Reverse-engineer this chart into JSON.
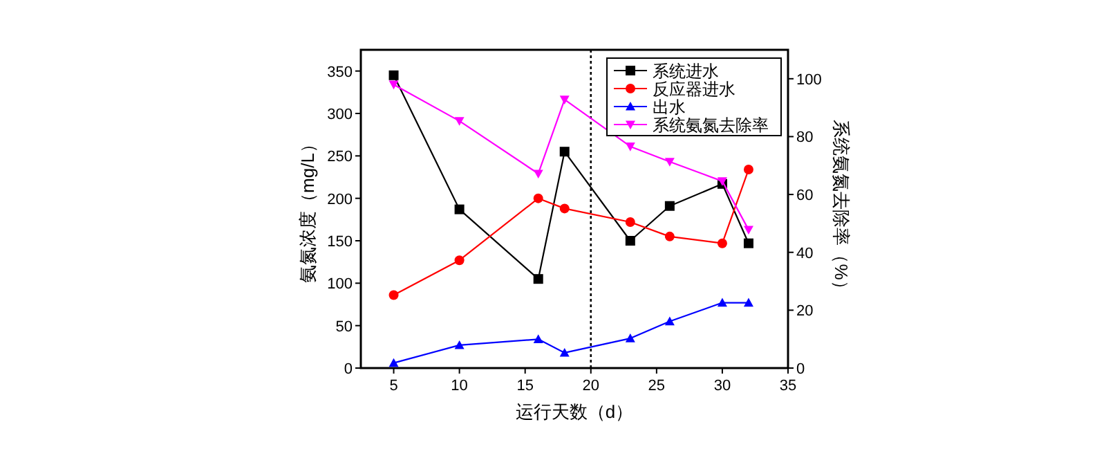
{
  "chart_data": {
    "type": "line",
    "xlabel": "运行天数（d）",
    "ylabel": "氨氮浓度（mg/L）",
    "y2label": "系统氨氮去除率（%）",
    "x": [
      5,
      10,
      16,
      18,
      23,
      26,
      30,
      32
    ],
    "xlim": [
      2.5,
      35
    ],
    "xticks": [
      5,
      10,
      15,
      20,
      25,
      30,
      35
    ],
    "ylim": [
      0,
      375
    ],
    "yticks": [
      0,
      50,
      100,
      150,
      200,
      250,
      300,
      350
    ],
    "y2lim": [
      0,
      110
    ],
    "y2ticks": [
      0,
      20,
      40,
      60,
      80,
      100
    ],
    "legend": "top right",
    "grid": false,
    "line_style": "solid",
    "ref_lines": [
      {
        "axis": "x",
        "value": 20,
        "color": "#000000",
        "line_style": "dotted"
      }
    ],
    "series": [
      {
        "name": "系统进水",
        "color": "#000000",
        "marker": "square",
        "values": [
          345,
          187,
          105,
          255,
          150,
          191,
          217,
          147
        ]
      },
      {
        "name": "反应器进水",
        "color": "#ff0000",
        "marker": "circle",
        "values": [
          86,
          127,
          200,
          188,
          172,
          155,
          147,
          234
        ]
      },
      {
        "name": "出水",
        "color": "#0000ff",
        "marker": "triangle",
        "values": [
          6,
          27,
          34,
          18,
          35,
          55,
          77,
          77
        ]
      },
      {
        "name": "系统氨氮去除率",
        "color": "#ff00ff",
        "marker": "triangle-down",
        "axis": "y2",
        "values": [
          98,
          85.4,
          67.2,
          92.8,
          76.6,
          71.3,
          64.6,
          47.8
        ]
      }
    ]
  }
}
